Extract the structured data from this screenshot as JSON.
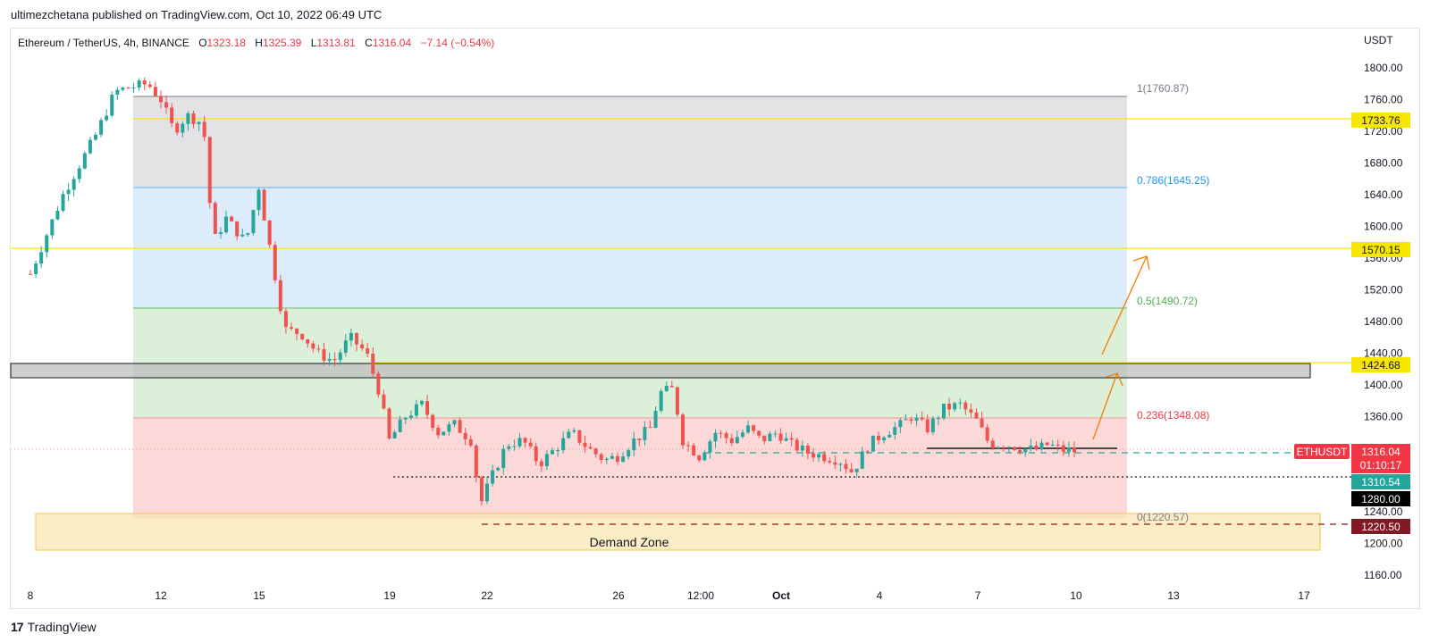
{
  "publisher_line": "ultimezchetana published on TradingView.com, Oct 10, 2022 06:49 UTC",
  "footer_brand": "TradingView",
  "legend": {
    "symbol": "Ethereum / TetherUS, 4h, BINANCE",
    "o_label": "O",
    "o": "1323.18",
    "h_label": "H",
    "h": "1325.39",
    "l_label": "L",
    "l": "1313.81",
    "c_label": "C",
    "c": "1316.04",
    "change": "−7.14 (−0.54%)"
  },
  "axis": {
    "currency": "USDT",
    "y_ticks": [
      "1800.00",
      "1760.00",
      "1720.00",
      "1680.00",
      "1640.00",
      "1600.00",
      "1560.00",
      "1520.00",
      "1480.00",
      "1440.00",
      "1400.00",
      "1360.00",
      "1320.00",
      "1280.00",
      "1240.00",
      "1200.00",
      "1160.00"
    ],
    "x_ticks": [
      "8",
      "12",
      "15",
      "19",
      "22",
      "26",
      "12:00",
      "Oct",
      "4",
      "7",
      "10",
      "13",
      "17"
    ]
  },
  "colors": {
    "up": "#26a69a",
    "down": "#ef5350",
    "fib_grey": "#787b86",
    "fib_blue": "#2196f3",
    "fib_green": "#4caf50",
    "fib_red": "#f23645",
    "level_yellow": "#f7e600",
    "demand_zone": "#ffe9b3",
    "arrow": "#f57c00"
  },
  "fib_labels": {
    "l1": "1(1760.87)",
    "l786": "0.786(1645.25)",
    "l5": "0.5(1490.72)",
    "l236": "0.236(1348.08)",
    "l0": "0(1220.57)"
  },
  "demand_zone_label": "Demand Zone",
  "price_badges": {
    "yellow_top": "1733.76",
    "yellow_mid": "1570.15",
    "yellow_low": "1424.68",
    "symbol_tag": "ETHUSDT",
    "last_price": "1316.04",
    "countdown": "01:10:17",
    "green_level": "1310.54",
    "black_level": "1280.00",
    "red_level": "1220.50"
  },
  "chart_data": {
    "type": "candlestick",
    "title": "Ethereum / TetherUS, 4h, BINANCE",
    "ylabel": "USDT",
    "ylim": [
      1140,
      1820
    ],
    "x_ticks": [
      "8",
      "12",
      "15",
      "19",
      "22",
      "26",
      "12:00",
      "Oct",
      "4",
      "7",
      "10",
      "13",
      "17"
    ],
    "levels": [
      1733.76,
      1570.15,
      1424.68,
      1310.54,
      1280.0,
      1220.5
    ],
    "fibonacci": {
      "1": 1760.87,
      "0.786": 1645.25,
      "0.5": 1490.72,
      "0.236": 1348.08,
      "0": 1220.57
    },
    "demand_zone": [
      1195,
      1240
    ],
    "last": {
      "open": 1323.18,
      "high": 1325.39,
      "low": 1313.81,
      "close": 1316.04,
      "change": -7.14,
      "change_pct": -0.54
    },
    "close_path": [
      [
        8,
        1540
      ],
      [
        9,
        1640
      ],
      [
        10,
        1715
      ],
      [
        10.6,
        1770
      ],
      [
        11,
        1775
      ],
      [
        11.6,
        1780
      ],
      [
        12,
        1760
      ],
      [
        12.4,
        1720
      ],
      [
        12.8,
        1740
      ],
      [
        13.3,
        1730
      ],
      [
        13.6,
        1580
      ],
      [
        14,
        1610
      ],
      [
        14.6,
        1580
      ],
      [
        15,
        1650
      ],
      [
        15.4,
        1560
      ],
      [
        15.8,
        1470
      ],
      [
        16.3,
        1465
      ],
      [
        16.8,
        1440
      ],
      [
        17.3,
        1430
      ],
      [
        17.8,
        1460
      ],
      [
        18.3,
        1440
      ],
      [
        18.7,
        1390
      ],
      [
        19,
        1330
      ],
      [
        19.5,
        1360
      ],
      [
        20,
        1375
      ],
      [
        20.5,
        1340
      ],
      [
        21,
        1350
      ],
      [
        21.5,
        1330
      ],
      [
        21.8,
        1250
      ],
      [
        22.1,
        1280
      ],
      [
        22.6,
        1325
      ],
      [
        23.1,
        1330
      ],
      [
        23.6,
        1300
      ],
      [
        24.1,
        1320
      ],
      [
        24.6,
        1340
      ],
      [
        25.1,
        1320
      ],
      [
        25.6,
        1305
      ],
      [
        26,
        1310
      ],
      [
        26.5,
        1330
      ],
      [
        27,
        1345
      ],
      [
        27.3,
        1390
      ],
      [
        27.7,
        1395
      ],
      [
        28,
        1330
      ],
      [
        28.5,
        1310
      ],
      [
        29,
        1340
      ],
      [
        29.5,
        1330
      ],
      [
        30,
        1345
      ],
      [
        30.4,
        1330
      ],
      [
        30.9,
        1340
      ],
      [
        31.3,
        1325
      ],
      [
        31.8,
        1315
      ],
      [
        32.3,
        1310
      ],
      [
        32.8,
        1305
      ],
      [
        33.2,
        1290
      ],
      [
        33.7,
        1325
      ],
      [
        34.2,
        1340
      ],
      [
        34.7,
        1350
      ],
      [
        35,
        1360
      ],
      [
        35.5,
        1345
      ],
      [
        36,
        1370
      ],
      [
        36.5,
        1375
      ],
      [
        37,
        1355
      ],
      [
        37.4,
        1325
      ],
      [
        37.9,
        1325
      ],
      [
        38.4,
        1320
      ],
      [
        38.8,
        1318
      ],
      [
        39.2,
        1325
      ],
      [
        39.6,
        1318
      ],
      [
        40.1,
        1316
      ]
    ]
  }
}
